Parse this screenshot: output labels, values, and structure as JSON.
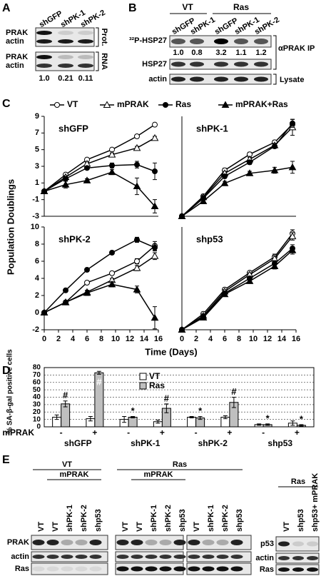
{
  "panels": {
    "A": {
      "label": "A",
      "lanes": [
        "shGFP",
        "shPK-1",
        "shPK-2"
      ],
      "rows": [
        "PRAK",
        "actin",
        "PRAK",
        "actin"
      ],
      "groups": [
        "Prot.",
        "RNA"
      ],
      "ratios": [
        "1.0",
        "0.21",
        "0.11"
      ]
    },
    "B": {
      "label": "B",
      "groups": [
        "VT",
        "Ras"
      ],
      "lanes": [
        "shGFP",
        "shPK-1",
        "shGFP",
        "shPK-1",
        "shPK-2"
      ],
      "rows": [
        "³²P-HSP27",
        "HSP27",
        "actin"
      ],
      "ratios": [
        "1.0",
        "0.8",
        "3.2",
        "1.1",
        "1.2"
      ],
      "brackets": [
        "αPRAK IP",
        "Lysate"
      ]
    },
    "C": {
      "label": "C",
      "ylabel": "Population Doublings",
      "xlabel": "Time (Days)"
    },
    "D": {
      "label": "D"
    },
    "E": {
      "label": "E",
      "groups": [
        "VT",
        "Ras"
      ],
      "subgroups": [
        "mPRAK",
        "mPRAK"
      ],
      "lanes": [
        "VT",
        "VT",
        "shPK-1",
        "shPK-2",
        "shp53",
        "VT",
        "VT",
        "shPK-1",
        "shPK-2",
        "shp53",
        "VT",
        "shPK-1",
        "shPK-2",
        "shp53"
      ],
      "rows": [
        "PRAK",
        "actin",
        "Ras"
      ],
      "right": {
        "group": "Ras",
        "lanes": [
          "VT",
          "shp53",
          "shp53+ mPRAK"
        ],
        "rows": [
          "p53",
          "actin",
          "Ras"
        ]
      }
    }
  },
  "chart_data": [
    {
      "type": "line",
      "title": "shGFP",
      "legend": true,
      "x": [
        0,
        3,
        6,
        9.5,
        13,
        15.5
      ],
      "xlim": [
        0,
        16
      ],
      "ylim": [
        -3,
        9
      ],
      "yticks": [
        -3,
        -1,
        1,
        3,
        5,
        7,
        9
      ],
      "series": [
        {
          "name": "VT",
          "color": "#000000",
          "marker": "open-circle",
          "values": [
            0,
            2,
            3.8,
            5,
            6.6,
            8
          ],
          "errors": [
            0.2,
            0.2,
            0.2,
            0.2,
            0.2,
            0.2
          ]
        },
        {
          "name": "mPRAK",
          "color": "#000000",
          "marker": "open-triangle",
          "values": [
            0,
            1.7,
            3.3,
            4.4,
            5.2,
            6.4
          ],
          "errors": [
            0.2,
            0.2,
            0.2,
            0.2,
            0.2,
            0.2
          ]
        },
        {
          "name": "Ras",
          "color": "#000000",
          "marker": "filled-circle",
          "values": [
            0,
            1.5,
            2.8,
            3.1,
            3.2,
            2.4
          ],
          "errors": [
            0.2,
            0.3,
            0.2,
            0.3,
            0.4,
            1
          ]
        },
        {
          "name": "mPRAK+Ras",
          "color": "#000000",
          "marker": "filled-triangle",
          "values": [
            0,
            0.8,
            1.3,
            2.3,
            0.6,
            -1.8
          ],
          "errors": [
            0.2,
            0.4,
            0.2,
            0.3,
            1,
            0.8
          ]
        }
      ]
    },
    {
      "type": "line",
      "title": "shPK-1",
      "x": [
        0,
        3,
        6,
        9.5,
        13,
        15.5
      ],
      "xlim": [
        0,
        16
      ],
      "ylim": [
        0,
        10
      ],
      "series": [
        {
          "color": "#000000",
          "marker": "open-circle",
          "values": [
            0,
            2,
            4.6,
            6.2,
            7.4,
            9.2
          ],
          "errors": [
            0.2,
            0.2,
            0.2,
            0.2,
            0.2,
            0.5
          ]
        },
        {
          "color": "#000000",
          "marker": "open-triangle",
          "values": [
            0,
            1.9,
            4.3,
            5.7,
            7.1,
            8.9
          ],
          "errors": [
            0.2,
            0.2,
            0.2,
            0.2,
            0.2,
            0.8
          ]
        },
        {
          "color": "#000000",
          "marker": "filled-circle",
          "values": [
            0,
            1.8,
            4,
            5.4,
            7,
            9.3
          ],
          "errors": [
            0.2,
            0.2,
            0.2,
            0.2,
            0.2,
            0.4
          ]
        },
        {
          "color": "#000000",
          "marker": "filled-triangle",
          "values": [
            0,
            1.5,
            3.3,
            4.3,
            4.6,
            4.9
          ],
          "errors": [
            0.2,
            0.2,
            0.2,
            0.2,
            0.3,
            0.6
          ]
        }
      ]
    },
    {
      "type": "line",
      "title": "shPK-2",
      "x": [
        0,
        3,
        6,
        9.5,
        13,
        15.5
      ],
      "xlim": [
        0,
        16
      ],
      "xticks": [
        0,
        2,
        4,
        6,
        8,
        10,
        12,
        14,
        16
      ],
      "ylim": [
        -2,
        10
      ],
      "yticks": [
        -2,
        0,
        2,
        4,
        6,
        8,
        10
      ],
      "series": [
        {
          "color": "#000000",
          "marker": "open-circle",
          "values": [
            0,
            1.2,
            3.5,
            4.6,
            6,
            7.8
          ],
          "errors": [
            0.2,
            0.2,
            0.2,
            0.2,
            0.3,
            0.5
          ]
        },
        {
          "color": "#000000",
          "marker": "open-triangle",
          "values": [
            0,
            1.2,
            2.4,
            3.8,
            5.2,
            6.6
          ],
          "errors": [
            0.2,
            0.2,
            0.2,
            0.2,
            0.3,
            0.4
          ]
        },
        {
          "color": "#000000",
          "marker": "filled-circle",
          "values": [
            0,
            2.6,
            5,
            7,
            8.5,
            7.6
          ],
          "errors": [
            0.2,
            0.2,
            0.2,
            0.2,
            0.3,
            0.4
          ]
        },
        {
          "color": "#000000",
          "marker": "filled-triangle",
          "values": [
            0,
            1.2,
            2.3,
            3.3,
            2.7,
            -0.6
          ],
          "errors": [
            0.2,
            0.2,
            0.3,
            0.3,
            0.4,
            1.3
          ]
        }
      ]
    },
    {
      "type": "line",
      "title": "shp53",
      "x": [
        0,
        3,
        6,
        9.5,
        13,
        15.5
      ],
      "xlim": [
        0,
        16
      ],
      "xticks": [
        0,
        2,
        4,
        6,
        8,
        10,
        12,
        14,
        16
      ],
      "ylim": [
        0,
        11
      ],
      "series": [
        {
          "color": "#000000",
          "marker": "open-circle",
          "values": [
            0,
            1.7,
            4.3,
            6.1,
            7.8,
            10.3
          ],
          "errors": [
            0.2,
            0.2,
            0.2,
            0.2,
            0.3,
            0.4
          ]
        },
        {
          "color": "#000000",
          "marker": "open-triangle",
          "values": [
            0,
            1.5,
            4.1,
            5.9,
            7.6,
            10
          ],
          "errors": [
            0.2,
            0.2,
            0.2,
            0.2,
            0.3,
            0.4
          ]
        },
        {
          "color": "#000000",
          "marker": "filled-circle",
          "values": [
            0,
            1.4,
            3.9,
            5.5,
            7.1,
            8.7
          ],
          "errors": [
            0.2,
            0.2,
            0.2,
            0.2,
            0.3,
            0.4
          ]
        },
        {
          "color": "#000000",
          "marker": "filled-triangle",
          "values": [
            0,
            1.3,
            3.8,
            5.2,
            6.8,
            8.5
          ],
          "errors": [
            0.2,
            0.2,
            0.2,
            0.2,
            0.3,
            0.4
          ]
        }
      ]
    },
    {
      "type": "bar",
      "ylabel": "% SA-β-gal positive cells",
      "category_label": "mPRAK",
      "categories": [
        "-",
        "+",
        "-",
        "+",
        "-",
        "+",
        "-",
        "+"
      ],
      "groups": [
        "shGFP",
        "shPK-1",
        "shPK-2",
        "shp53"
      ],
      "ylim": [
        0,
        80
      ],
      "yticks": [
        0,
        10,
        20,
        30,
        40,
        50,
        60,
        70,
        80
      ],
      "grid": true,
      "legend": "upper center",
      "series": [
        {
          "name": "VT",
          "color": "#ffffff",
          "values": [
            13,
            11,
            10,
            7,
            13,
            13,
            3,
            5
          ],
          "errors": [
            3,
            3,
            4,
            2,
            1,
            2,
            1,
            3
          ]
        },
        {
          "name": "Ras",
          "color": "#bfbfbf",
          "values": [
            31,
            73,
            13,
            25,
            12,
            33,
            3,
            2
          ],
          "errors": [
            4,
            2,
            1,
            6,
            2,
            7,
            1,
            1
          ],
          "annotations": [
            "#",
            "#",
            "*",
            "#",
            "*",
            "#",
            "*",
            "*"
          ]
        }
      ]
    }
  ]
}
